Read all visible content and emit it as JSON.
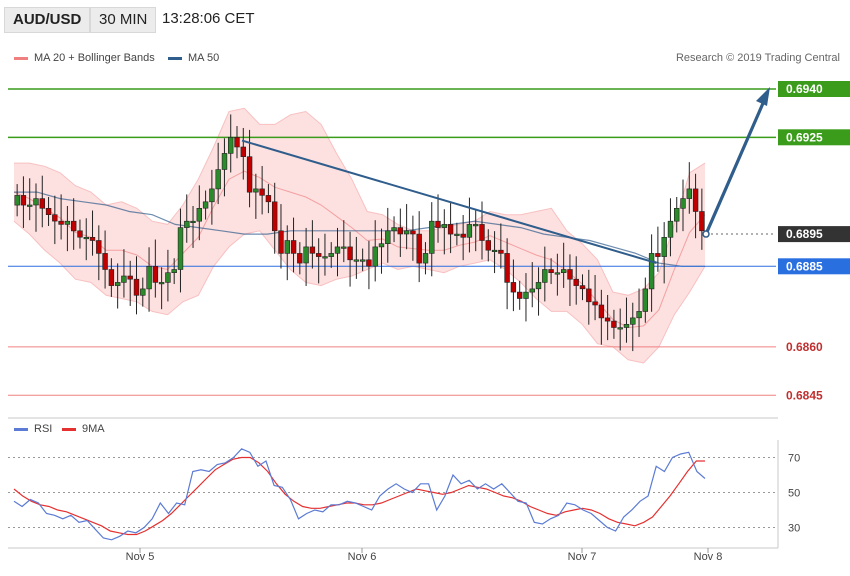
{
  "header": {
    "symbol": "AUD/USD",
    "timeframe": "30 MIN",
    "time": "13:28:06 CET"
  },
  "copyright": "Research © 2019 Trading Central",
  "colors": {
    "candle_up": "#2b8a2b",
    "candle_down": "#c00000",
    "bollinger": "#f08080",
    "ma50": "#2f5d8c",
    "target_green": "#3a9c1a",
    "support_red": "#f08080",
    "pivot_blue": "#2a6fe0",
    "current_price": "#333333",
    "rsi": "#5b7bd5",
    "rsi_ma": "#e53030"
  },
  "chart_data": [
    {
      "type": "candlestick",
      "legend": [
        {
          "label": "MA 20 + Bollinger Bands",
          "color": "#f08080"
        },
        {
          "label": "MA 50",
          "color": "#2f5d8c"
        }
      ],
      "y_ticks": [
        0.6845,
        0.686,
        0.6885,
        0.6895,
        0.6925,
        0.694
      ],
      "ylim": [
        0.68395,
        0.69465
      ],
      "x_ticks": [
        "Nov 5",
        "Nov 6",
        "Nov 7",
        "Nov 8"
      ],
      "price_labels": [
        {
          "text": "0.6940",
          "value": 0.694,
          "style": "target"
        },
        {
          "text": "0.6925",
          "value": 0.6925,
          "style": "target"
        },
        {
          "text": "0.6895",
          "value": 0.6895,
          "style": "current"
        },
        {
          "text": "0.6885",
          "value": 0.6885,
          "style": "pivot"
        },
        {
          "text": "0.6860",
          "value": 0.686,
          "style": "support"
        },
        {
          "text": "0.6845",
          "value": 0.6845,
          "style": "support"
        }
      ],
      "candles_close": [
        0.6907,
        0.6904,
        0.6904,
        0.6906,
        0.6903,
        0.6901,
        0.6899,
        0.6898,
        0.6899,
        0.6896,
        0.6894,
        0.6894,
        0.6893,
        0.6889,
        0.6884,
        0.6879,
        0.688,
        0.6882,
        0.6881,
        0.6876,
        0.6878,
        0.6885,
        0.688,
        0.688,
        0.6883,
        0.6884,
        0.6897,
        0.6899,
        0.6899,
        0.6903,
        0.6905,
        0.6909,
        0.6915,
        0.692,
        0.6925,
        0.6922,
        0.6919,
        0.6908,
        0.6909,
        0.6907,
        0.6905,
        0.6896,
        0.6889,
        0.6893,
        0.6889,
        0.6886,
        0.6891,
        0.6889,
        0.6888,
        0.6888,
        0.6889,
        0.6891,
        0.6891,
        0.6887,
        0.6887,
        0.6887,
        0.6885,
        0.6891,
        0.6892,
        0.6896,
        0.6897,
        0.6895,
        0.6896,
        0.6895,
        0.6886,
        0.6889,
        0.6899,
        0.6897,
        0.6898,
        0.6895,
        0.6895,
        0.6894,
        0.6898,
        0.6898,
        0.6893,
        0.689,
        0.689,
        0.6889,
        0.688,
        0.6877,
        0.6875,
        0.6877,
        0.6878,
        0.688,
        0.6884,
        0.6883,
        0.6883,
        0.6884,
        0.6881,
        0.6879,
        0.6878,
        0.6874,
        0.6873,
        0.6869,
        0.6868,
        0.6866,
        0.6866,
        0.6867,
        0.6869,
        0.6871,
        0.6878,
        0.6889,
        0.6888,
        0.6894,
        0.6899,
        0.6903,
        0.6906,
        0.6909,
        0.6902,
        0.6896
      ],
      "bollinger_upper_approx": [
        0.6917,
        0.6917,
        0.6916,
        0.6914,
        0.691,
        0.6908,
        0.6904,
        0.6905,
        0.6903,
        0.6899,
        0.6898,
        0.6904,
        0.6912,
        0.6922,
        0.6933,
        0.6934,
        0.6929,
        0.6929,
        0.6932,
        0.6933,
        0.6929,
        0.692,
        0.6912,
        0.6902,
        0.6901,
        0.6898,
        0.6896,
        0.6896,
        0.6897,
        0.6898,
        0.6899,
        0.6902,
        0.6901,
        0.6901,
        0.6902,
        0.6903,
        0.6896,
        0.6892,
        0.6887,
        0.6877,
        0.6876,
        0.6878,
        0.6883,
        0.6898,
        0.6914,
        0.6917
      ],
      "bollinger_lower_approx": [
        0.6899,
        0.6895,
        0.689,
        0.6886,
        0.6881,
        0.688,
        0.6876,
        0.6875,
        0.6874,
        0.6871,
        0.687,
        0.6874,
        0.6876,
        0.6885,
        0.6891,
        0.6895,
        0.6896,
        0.689,
        0.6884,
        0.688,
        0.6879,
        0.6881,
        0.6882,
        0.6884,
        0.6886,
        0.6884,
        0.6885,
        0.6884,
        0.6883,
        0.6885,
        0.6886,
        0.6887,
        0.6884,
        0.688,
        0.6875,
        0.6871,
        0.6871,
        0.6867,
        0.6861,
        0.686,
        0.6856,
        0.6855,
        0.686,
        0.687,
        0.6877,
        0.6885
      ],
      "ma50_approx": [
        0.6908,
        0.6908,
        0.6906,
        0.6905,
        0.6904,
        0.6902,
        0.6901,
        0.6898,
        0.6897,
        0.6896,
        0.6895,
        0.6895,
        0.6896,
        0.6896,
        0.6896,
        0.6896,
        0.6896,
        0.6896,
        0.6897,
        0.6898,
        0.6899,
        0.6898,
        0.6897,
        0.6895,
        0.6894,
        0.6893,
        0.6891,
        0.6889,
        0.6886,
        0.6885,
        0.6885
      ],
      "trendline": {
        "from": 0.6924,
        "to": 0.6886
      },
      "projection": {
        "from": 0.6895,
        "to": 0.694
      }
    },
    {
      "type": "line",
      "legend": [
        {
          "label": "RSI",
          "color": "#5b7bd5"
        },
        {
          "label": "9MA",
          "color": "#e53030"
        }
      ],
      "y_ticks": [
        30,
        50,
        70
      ],
      "ylim": [
        20,
        80
      ],
      "series": [
        {
          "name": "RSI",
          "values": [
            45,
            42,
            46,
            44,
            38,
            37,
            35,
            37,
            33,
            34,
            29,
            24,
            23,
            25,
            28,
            27,
            30,
            35,
            44,
            38,
            44,
            43,
            62,
            63,
            62,
            66,
            67,
            70,
            75,
            73,
            65,
            68,
            54,
            53,
            46,
            35,
            38,
            40,
            39,
            43,
            43,
            45,
            44,
            42,
            40,
            48,
            52,
            55,
            52,
            50,
            55,
            55,
            40,
            48,
            60,
            55,
            57,
            52,
            55,
            52,
            55,
            50,
            45,
            44,
            33,
            32,
            35,
            37,
            44,
            43,
            40,
            38,
            34,
            30,
            28,
            36,
            40,
            45,
            48,
            65,
            62,
            70,
            72,
            73,
            62,
            58
          ]
        },
        {
          "name": "9MA",
          "values": [
            52,
            48,
            45,
            43,
            42,
            40,
            39,
            37,
            35,
            33,
            31,
            28,
            27,
            26,
            26,
            28,
            31,
            34,
            38,
            43,
            48,
            53,
            58,
            63,
            66,
            69,
            70,
            70,
            67,
            62,
            55,
            49,
            45,
            42,
            41,
            41,
            42,
            43,
            44,
            44,
            43,
            43,
            44,
            46,
            48,
            50,
            52,
            51,
            50,
            49,
            50,
            52,
            54,
            53,
            52,
            50,
            48,
            47,
            45,
            42,
            40,
            38,
            37,
            39,
            40,
            41,
            40,
            38,
            35,
            33,
            32,
            31,
            33,
            36,
            42,
            48,
            55,
            62,
            68,
            68
          ]
        }
      ]
    }
  ]
}
